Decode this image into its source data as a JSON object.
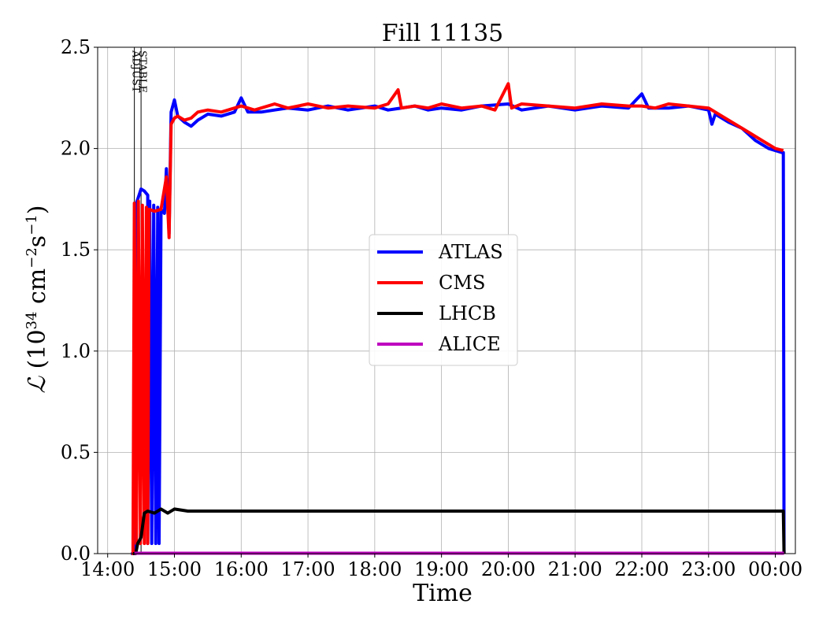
{
  "chart_data": {
    "type": "line",
    "title": "Fill 11135",
    "xlabel": "Time",
    "ylabel": "ℒ (10³⁴ cm⁻²s⁻¹)",
    "ylabel_parts": {
      "symbol": "ℒ",
      "open": " (10",
      "exp1": "34",
      "mid": " cm",
      "exp2": "−2",
      "s": "s",
      "exp3": "−1",
      "close": ")"
    },
    "x_unit": "hours since 14:00",
    "xlim": [
      -0.15,
      10.3
    ],
    "ylim": [
      0,
      2.5
    ],
    "grid": true,
    "legend_position": "center",
    "x_ticks": [
      {
        "value": 0,
        "label": "14:00"
      },
      {
        "value": 1,
        "label": "15:00"
      },
      {
        "value": 2,
        "label": "16:00"
      },
      {
        "value": 3,
        "label": "17:00"
      },
      {
        "value": 4,
        "label": "18:00"
      },
      {
        "value": 5,
        "label": "19:00"
      },
      {
        "value": 6,
        "label": "20:00"
      },
      {
        "value": 7,
        "label": "21:00"
      },
      {
        "value": 8,
        "label": "22:00"
      },
      {
        "value": 9,
        "label": "23:00"
      },
      {
        "value": 10,
        "label": "00:00"
      }
    ],
    "y_ticks": [
      {
        "value": 0.0,
        "label": "0.0"
      },
      {
        "value": 0.5,
        "label": "0.5"
      },
      {
        "value": 1.0,
        "label": "1.0"
      },
      {
        "value": 1.5,
        "label": "1.5"
      },
      {
        "value": 2.0,
        "label": "2.0"
      },
      {
        "value": 2.5,
        "label": "2.5"
      }
    ],
    "markers": [
      {
        "label": "ADJUST",
        "x": 0.4
      },
      {
        "label": "STABLE",
        "x": 0.5
      }
    ],
    "series": [
      {
        "name": "ATLAS",
        "color": "#0000ff",
        "points": [
          [
            0.35,
            0
          ],
          [
            0.4,
            0
          ],
          [
            0.42,
            1.72
          ],
          [
            0.45,
            1.75
          ],
          [
            0.5,
            1.8
          ],
          [
            0.55,
            1.79
          ],
          [
            0.6,
            1.77
          ],
          [
            0.6,
            0.05
          ],
          [
            0.63,
            1.74
          ],
          [
            0.66,
            0.05
          ],
          [
            0.69,
            1.72
          ],
          [
            0.72,
            0.05
          ],
          [
            0.75,
            1.71
          ],
          [
            0.77,
            0.05
          ],
          [
            0.8,
            1.7
          ],
          [
            0.85,
            1.68
          ],
          [
            0.88,
            1.9
          ],
          [
            0.92,
            1.58
          ],
          [
            0.95,
            2.18
          ],
          [
            1.0,
            2.24
          ],
          [
            1.05,
            2.16
          ],
          [
            1.15,
            2.13
          ],
          [
            1.25,
            2.11
          ],
          [
            1.35,
            2.14
          ],
          [
            1.5,
            2.17
          ],
          [
            1.7,
            2.16
          ],
          [
            1.9,
            2.18
          ],
          [
            2.0,
            2.25
          ],
          [
            2.1,
            2.18
          ],
          [
            2.3,
            2.18
          ],
          [
            2.5,
            2.19
          ],
          [
            2.7,
            2.2
          ],
          [
            3.0,
            2.19
          ],
          [
            3.3,
            2.21
          ],
          [
            3.6,
            2.19
          ],
          [
            4.0,
            2.21
          ],
          [
            4.2,
            2.19
          ],
          [
            4.4,
            2.2
          ],
          [
            4.6,
            2.21
          ],
          [
            4.8,
            2.19
          ],
          [
            5.0,
            2.2
          ],
          [
            5.3,
            2.19
          ],
          [
            5.6,
            2.21
          ],
          [
            6.0,
            2.22
          ],
          [
            6.2,
            2.19
          ],
          [
            6.6,
            2.21
          ],
          [
            7.0,
            2.19
          ],
          [
            7.4,
            2.21
          ],
          [
            7.8,
            2.2
          ],
          [
            8.0,
            2.27
          ],
          [
            8.1,
            2.2
          ],
          [
            8.4,
            2.2
          ],
          [
            8.7,
            2.21
          ],
          [
            9.0,
            2.19
          ],
          [
            9.05,
            2.12
          ],
          [
            9.1,
            2.17
          ],
          [
            9.3,
            2.13
          ],
          [
            9.5,
            2.1
          ],
          [
            9.7,
            2.04
          ],
          [
            9.9,
            2.0
          ],
          [
            10.1,
            1.98
          ],
          [
            10.12,
            1.98
          ],
          [
            10.13,
            0
          ]
        ]
      },
      {
        "name": "CMS",
        "color": "#ff0000",
        "points": [
          [
            0.36,
            0
          ],
          [
            0.38,
            0
          ],
          [
            0.4,
            1.73
          ],
          [
            0.43,
            0.05
          ],
          [
            0.46,
            1.74
          ],
          [
            0.49,
            0.05
          ],
          [
            0.52,
            1.72
          ],
          [
            0.55,
            0.05
          ],
          [
            0.58,
            1.71
          ],
          [
            0.6,
            0.05
          ],
          [
            0.62,
            1.7
          ],
          [
            0.7,
            1.69
          ],
          [
            0.8,
            1.7
          ],
          [
            0.88,
            1.86
          ],
          [
            0.92,
            1.56
          ],
          [
            0.95,
            2.12
          ],
          [
            1.0,
            2.15
          ],
          [
            1.05,
            2.16
          ],
          [
            1.15,
            2.14
          ],
          [
            1.25,
            2.15
          ],
          [
            1.35,
            2.18
          ],
          [
            1.5,
            2.19
          ],
          [
            1.7,
            2.18
          ],
          [
            1.9,
            2.2
          ],
          [
            2.0,
            2.21
          ],
          [
            2.2,
            2.19
          ],
          [
            2.5,
            2.22
          ],
          [
            2.7,
            2.2
          ],
          [
            3.0,
            2.22
          ],
          [
            3.3,
            2.2
          ],
          [
            3.6,
            2.21
          ],
          [
            4.0,
            2.2
          ],
          [
            4.2,
            2.22
          ],
          [
            4.35,
            2.29
          ],
          [
            4.4,
            2.2
          ],
          [
            4.6,
            2.21
          ],
          [
            4.8,
            2.2
          ],
          [
            5.0,
            2.22
          ],
          [
            5.3,
            2.2
          ],
          [
            5.6,
            2.21
          ],
          [
            5.8,
            2.19
          ],
          [
            6.0,
            2.32
          ],
          [
            6.05,
            2.2
          ],
          [
            6.2,
            2.22
          ],
          [
            6.6,
            2.21
          ],
          [
            7.0,
            2.2
          ],
          [
            7.4,
            2.22
          ],
          [
            7.8,
            2.21
          ],
          [
            8.0,
            2.21
          ],
          [
            8.2,
            2.2
          ],
          [
            8.4,
            2.22
          ],
          [
            8.7,
            2.21
          ],
          [
            9.0,
            2.2
          ],
          [
            9.2,
            2.16
          ],
          [
            9.4,
            2.12
          ],
          [
            9.6,
            2.08
          ],
          [
            9.8,
            2.04
          ],
          [
            10.0,
            2.0
          ],
          [
            10.12,
            1.99
          ]
        ]
      },
      {
        "name": "LHCB",
        "color": "#000000",
        "points": [
          [
            0.38,
            0
          ],
          [
            0.42,
            0.0
          ],
          [
            0.45,
            0.05
          ],
          [
            0.5,
            0.08
          ],
          [
            0.55,
            0.2
          ],
          [
            0.6,
            0.21
          ],
          [
            0.7,
            0.2
          ],
          [
            0.8,
            0.22
          ],
          [
            0.9,
            0.2
          ],
          [
            1.0,
            0.22
          ],
          [
            1.2,
            0.21
          ],
          [
            1.5,
            0.21
          ],
          [
            2.0,
            0.21
          ],
          [
            2.5,
            0.21
          ],
          [
            3.0,
            0.21
          ],
          [
            3.5,
            0.21
          ],
          [
            4.0,
            0.21
          ],
          [
            4.5,
            0.21
          ],
          [
            5.0,
            0.21
          ],
          [
            5.5,
            0.21
          ],
          [
            6.0,
            0.21
          ],
          [
            6.5,
            0.21
          ],
          [
            7.0,
            0.21
          ],
          [
            7.5,
            0.21
          ],
          [
            8.0,
            0.21
          ],
          [
            8.5,
            0.21
          ],
          [
            9.0,
            0.21
          ],
          [
            9.5,
            0.21
          ],
          [
            10.0,
            0.21
          ],
          [
            10.12,
            0.21
          ],
          [
            10.13,
            0
          ]
        ]
      },
      {
        "name": "ALICE",
        "color": "#bf00bf",
        "points": [
          [
            0.4,
            0.002
          ],
          [
            10.13,
            0.002
          ]
        ]
      }
    ]
  }
}
